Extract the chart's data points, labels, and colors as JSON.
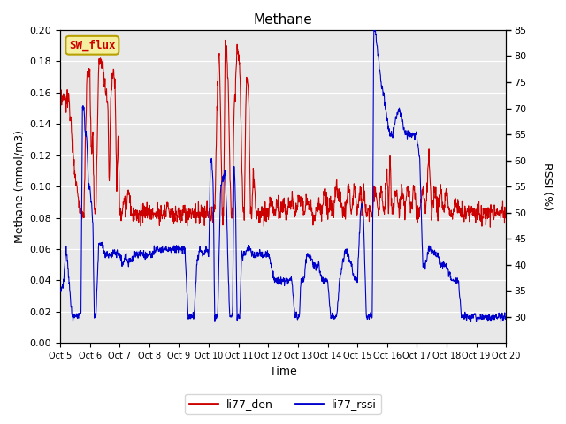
{
  "title": "Methane",
  "xlabel": "Time",
  "ylabel_left": "Methane (mmol/m3)",
  "ylabel_right": "RSSI (%)",
  "ylim_left": [
    0.0,
    0.2
  ],
  "ylim_right": [
    25,
    85
  ],
  "yticks_left": [
    0.0,
    0.02,
    0.04,
    0.06,
    0.08,
    0.1,
    0.12,
    0.14,
    0.16,
    0.18,
    0.2
  ],
  "yticks_right": [
    30,
    35,
    40,
    45,
    50,
    55,
    60,
    65,
    70,
    75,
    80,
    85
  ],
  "xtick_labels": [
    "Oct 5",
    "Oct 6",
    "Oct 7",
    "Oct 8",
    "Oct 9",
    "Oct 10",
    "Oct 11",
    "Oct 12",
    "Oct 13",
    "Oct 14",
    "Oct 15",
    "Oct 16",
    "Oct 17",
    "Oct 18",
    "Oct 19",
    "Oct 20"
  ],
  "color_red": "#cc0000",
  "color_blue": "#0000cc",
  "bg_color": "#e8e8e8",
  "legend_label_red": "li77_den",
  "legend_label_blue": "li77_rssi",
  "annotation_text": "SW_flux",
  "annotation_bg": "#f5f0a0",
  "annotation_border": "#b8a000",
  "figsize": [
    6.4,
    4.8
  ],
  "dpi": 100
}
